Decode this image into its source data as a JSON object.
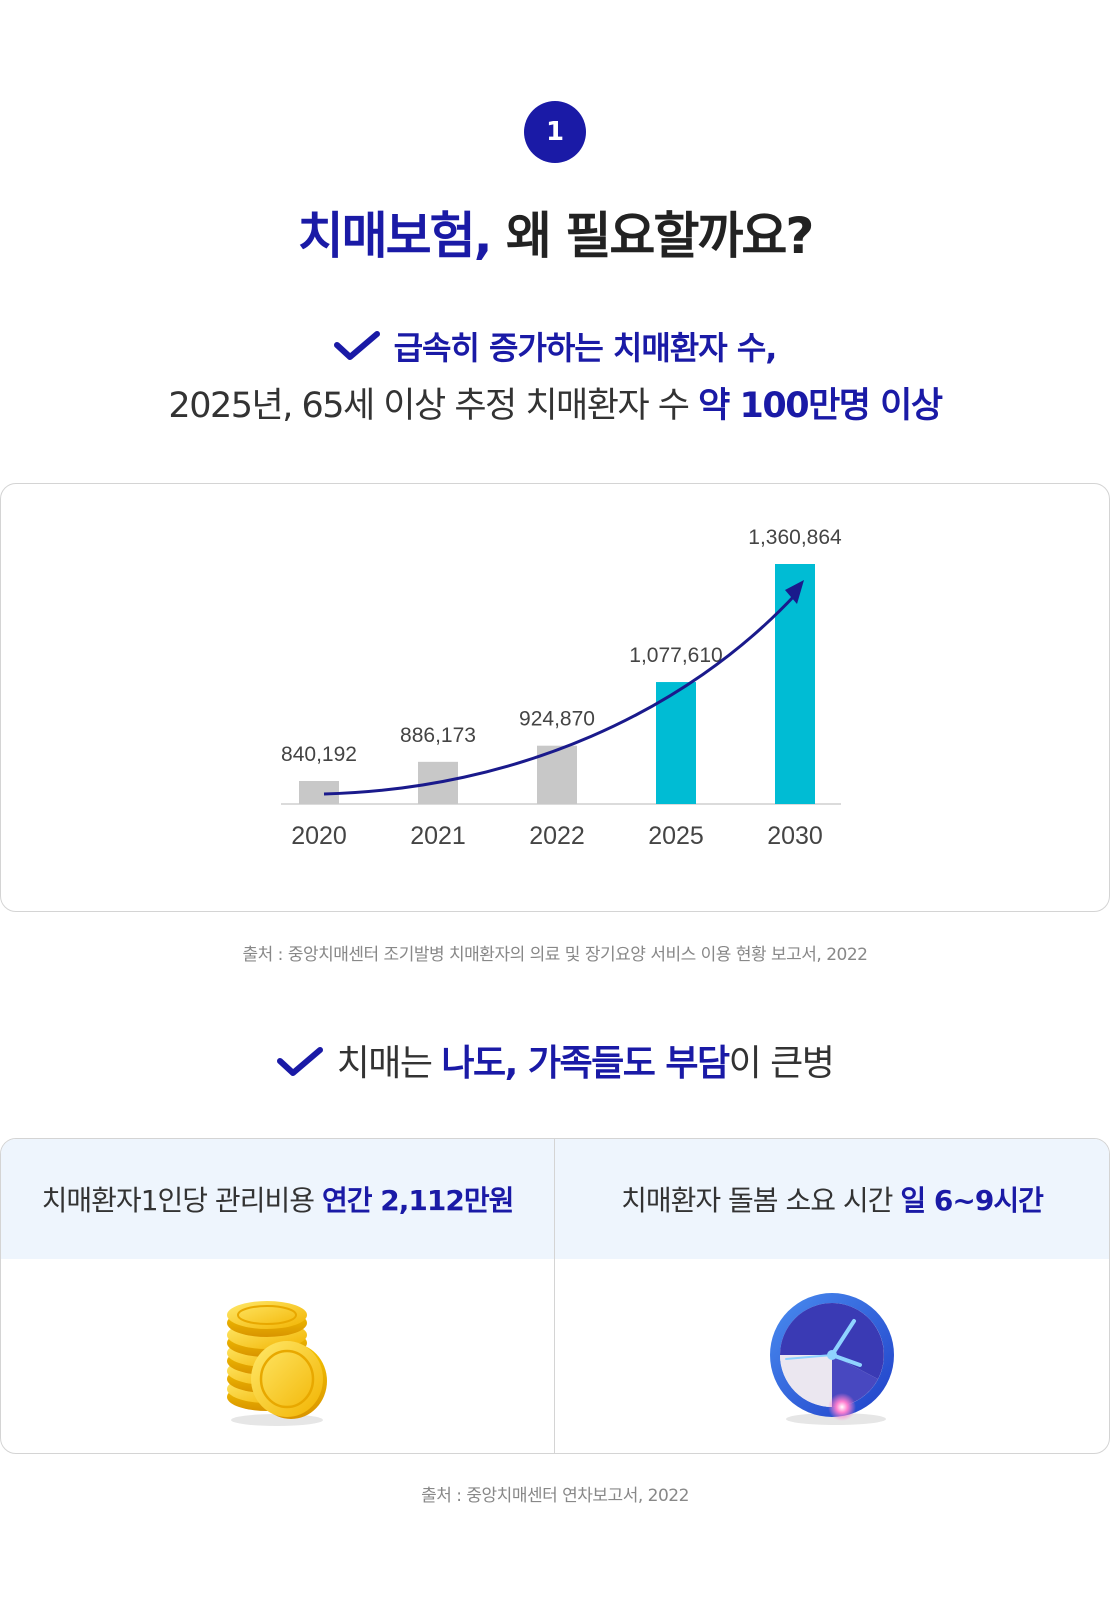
{
  "step_number": "1",
  "title": {
    "part1": "치매보험,",
    "part2": "왜 필요할까요?"
  },
  "section1": {
    "headline": "급속히 증가하는 치매환자 수,",
    "subline_normal": "2025년, 65세 이상 추정 치매환자 수",
    "subline_highlight": "약 100만명 이상"
  },
  "chart_data": {
    "type": "bar",
    "categories": [
      "2020",
      "2021",
      "2022",
      "2025",
      "2030"
    ],
    "values": [
      840192,
      886173,
      924870,
      1077610,
      1360864
    ],
    "value_labels": [
      "840,192",
      "886,173",
      "924,870",
      "1,077,610",
      "1,360,864"
    ],
    "title": "",
    "xlabel": "",
    "ylabel": "",
    "ylim": [
      800000,
      1400000
    ],
    "grid": false,
    "colors": [
      "#c8c8c8",
      "#c8c8c8",
      "#c8c8c8",
      "#00bcd4",
      "#00bcd4"
    ],
    "trend_arrow_color": "#1a1a8c"
  },
  "source1": "출처 : 중앙치매센터 조기발병 치매환자의 의료 및 장기요양 서비스 이용 현황 보고서, 2022",
  "section2": {
    "headline_a": "치매는",
    "headline_b": "나도, 가족들도 부담",
    "headline_c": "이 큰병"
  },
  "cards": [
    {
      "label": "치매환자1인당 관리비용",
      "highlight": "연간 2,112만원",
      "icon": "gold-coins-icon"
    },
    {
      "label": "치매환자 돌봄 소요 시간",
      "highlight": "일 6~9시간",
      "icon": "clock-icon"
    }
  ],
  "source2": "출처 : 중앙치매센터 연차보고서, 2022",
  "colors": {
    "accent": "#1a1aa6",
    "highlight_bar": "#00bcd4",
    "muted_bar": "#c8c8c8",
    "card_header_bg": "#eef5fd"
  }
}
